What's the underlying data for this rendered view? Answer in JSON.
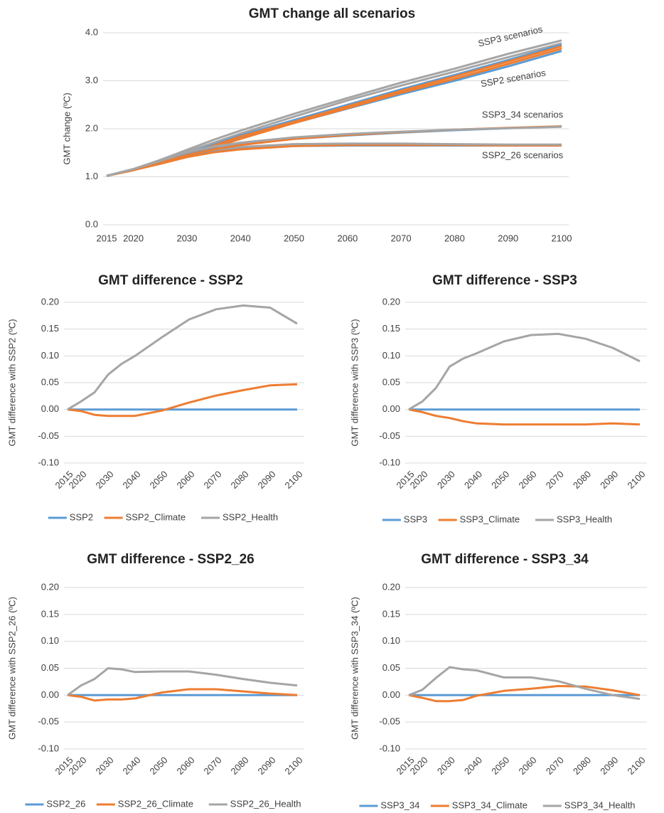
{
  "chart_data": [
    {
      "type": "line",
      "title": "GMT change all scenarios",
      "ylabel": "GMT change (ºC)",
      "x": [
        2015,
        2020,
        2025,
        2030,
        2035,
        2040,
        2050,
        2060,
        2070,
        2080,
        2090,
        2100
      ],
      "xlim": [
        2015,
        2100
      ],
      "xticks": [
        2015,
        2020,
        2030,
        2040,
        2050,
        2060,
        2070,
        2080,
        2090,
        2100
      ],
      "ylim": [
        0,
        4
      ],
      "yticks": [
        {
          "value": 0,
          "label": "0.0"
        },
        {
          "value": 1,
          "label": "1.0"
        },
        {
          "value": 2,
          "label": "2.0"
        },
        {
          "value": 3,
          "label": "3.0"
        },
        {
          "value": 4,
          "label": "4.0"
        }
      ],
      "grid": true,
      "annotations": [
        "SSP3 scenarios",
        "SSP2 scenarios",
        "SSP3_34 scenarios",
        "SSP2_26 scenarios"
      ],
      "series": [
        {
          "color": "#5b9bd5",
          "values": [
            1.02,
            1.15,
            1.3,
            1.45,
            1.62,
            1.8,
            2.12,
            2.42,
            2.72,
            3.0,
            3.3,
            3.62
          ]
        },
        {
          "color": "#ed7d31",
          "values": [
            1.02,
            1.14,
            1.29,
            1.44,
            1.61,
            1.79,
            2.12,
            2.43,
            2.75,
            3.04,
            3.35,
            3.67
          ]
        },
        {
          "color": "#a5a5a5",
          "values": [
            1.02,
            1.15,
            1.32,
            1.52,
            1.71,
            1.9,
            2.25,
            2.59,
            2.9,
            3.19,
            3.49,
            3.78
          ]
        },
        {
          "color": "#5b9bd5",
          "values": [
            1.02,
            1.15,
            1.31,
            1.48,
            1.67,
            1.86,
            2.18,
            2.5,
            2.82,
            3.12,
            3.43,
            3.75
          ]
        },
        {
          "color": "#ed7d31",
          "values": [
            1.02,
            1.14,
            1.3,
            1.46,
            1.65,
            1.84,
            2.15,
            2.47,
            2.79,
            3.09,
            3.4,
            3.72
          ]
        },
        {
          "color": "#a5a5a5",
          "values": [
            1.02,
            1.16,
            1.35,
            1.56,
            1.77,
            1.96,
            2.31,
            2.64,
            2.96,
            3.25,
            3.56,
            3.84
          ]
        },
        {
          "color": "#5b9bd5",
          "values": [
            1.02,
            1.14,
            1.28,
            1.42,
            1.52,
            1.58,
            1.64,
            1.65,
            1.65,
            1.65,
            1.65,
            1.65
          ]
        },
        {
          "color": "#ed7d31",
          "values": [
            1.02,
            1.14,
            1.27,
            1.41,
            1.51,
            1.57,
            1.64,
            1.66,
            1.66,
            1.66,
            1.65,
            1.65
          ]
        },
        {
          "color": "#a5a5a5",
          "values": [
            1.02,
            1.16,
            1.31,
            1.47,
            1.56,
            1.62,
            1.68,
            1.69,
            1.69,
            1.68,
            1.67,
            1.67
          ]
        },
        {
          "color": "#5b9bd5",
          "values": [
            1.02,
            1.15,
            1.3,
            1.46,
            1.58,
            1.67,
            1.79,
            1.86,
            1.92,
            1.97,
            2.01,
            2.05
          ]
        },
        {
          "color": "#ed7d31",
          "values": [
            1.02,
            1.14,
            1.29,
            1.45,
            1.57,
            1.66,
            1.79,
            1.87,
            1.93,
            1.98,
            2.02,
            2.05
          ]
        },
        {
          "color": "#a5a5a5",
          "values": [
            1.02,
            1.16,
            1.33,
            1.51,
            1.63,
            1.71,
            1.82,
            1.89,
            1.94,
            1.98,
            2.01,
            2.04
          ]
        }
      ]
    },
    {
      "type": "line",
      "title": "GMT difference - SSP2",
      "ylabel": "GMT difference with SSP2 (ºC)",
      "x": [
        2015,
        2020,
        2025,
        2030,
        2035,
        2040,
        2050,
        2060,
        2070,
        2080,
        2090,
        2100
      ],
      "xlim": [
        2015,
        2100
      ],
      "xticks": [
        2015,
        2020,
        2030,
        2040,
        2050,
        2060,
        2070,
        2080,
        2090,
        2100
      ],
      "ylim": [
        -0.1,
        0.2
      ],
      "yticks": [
        {
          "value": -0.1,
          "label": "-0.10"
        },
        {
          "value": -0.05,
          "label": "-0.05"
        },
        {
          "value": 0,
          "label": "0.00"
        },
        {
          "value": 0.05,
          "label": "0.05"
        },
        {
          "value": 0.1,
          "label": "0.10"
        },
        {
          "value": 0.15,
          "label": "0.15"
        },
        {
          "value": 0.2,
          "label": "0.20"
        }
      ],
      "grid": true,
      "legend": "bottom",
      "series": [
        {
          "name": "SSP2",
          "color": "#5b9bd5",
          "values": [
            0,
            0,
            0,
            0,
            0,
            0,
            0,
            0,
            0,
            0,
            0,
            0
          ]
        },
        {
          "name": "SSP2_Climate",
          "color": "#ed7d31",
          "values": [
            0,
            -0.003,
            -0.01,
            -0.012,
            -0.012,
            -0.012,
            -0.002,
            0.013,
            0.026,
            0.036,
            0.045,
            0.047
          ]
        },
        {
          "name": "SSP2_Health",
          "color": "#a5a5a5",
          "values": [
            0,
            0.015,
            0.032,
            0.065,
            0.085,
            0.1,
            0.135,
            0.168,
            0.187,
            0.194,
            0.19,
            0.16
          ]
        }
      ]
    },
    {
      "type": "line",
      "title": "GMT difference - SSP3",
      "ylabel": "GMT difference with SSP3 (ºC)",
      "x": [
        2015,
        2020,
        2025,
        2030,
        2035,
        2040,
        2050,
        2060,
        2070,
        2080,
        2090,
        2100
      ],
      "xlim": [
        2015,
        2100
      ],
      "xticks": [
        2015,
        2020,
        2030,
        2040,
        2050,
        2060,
        2070,
        2080,
        2090,
        2100
      ],
      "ylim": [
        -0.1,
        0.2
      ],
      "yticks": [
        {
          "value": -0.1,
          "label": "-0.10"
        },
        {
          "value": -0.05,
          "label": "-0.05"
        },
        {
          "value": 0,
          "label": "0.00"
        },
        {
          "value": 0.05,
          "label": "0.05"
        },
        {
          "value": 0.1,
          "label": "0.10"
        },
        {
          "value": 0.15,
          "label": "0.15"
        },
        {
          "value": 0.2,
          "label": "0.20"
        }
      ],
      "grid": true,
      "legend": "bottom",
      "series": [
        {
          "name": "SSP3",
          "color": "#5b9bd5",
          "values": [
            0,
            0,
            0,
            0,
            0,
            0,
            0,
            0,
            0,
            0,
            0,
            0
          ]
        },
        {
          "name": "SSP3_Climate",
          "color": "#ed7d31",
          "values": [
            0,
            -0.005,
            -0.012,
            -0.016,
            -0.022,
            -0.026,
            -0.028,
            -0.028,
            -0.028,
            -0.028,
            -0.026,
            -0.028
          ]
        },
        {
          "name": "SSP3_Health",
          "color": "#a5a5a5",
          "values": [
            0,
            0.015,
            0.04,
            0.08,
            0.095,
            0.105,
            0.127,
            0.139,
            0.141,
            0.132,
            0.115,
            0.09
          ]
        }
      ]
    },
    {
      "type": "line",
      "title": "GMT difference - SSP2_26",
      "ylabel": "GMT difference with SSP2_26 (ºC)",
      "x": [
        2015,
        2020,
        2025,
        2030,
        2035,
        2040,
        2050,
        2060,
        2070,
        2080,
        2090,
        2100
      ],
      "xlim": [
        2015,
        2100
      ],
      "xticks": [
        2015,
        2020,
        2030,
        2040,
        2050,
        2060,
        2070,
        2080,
        2090,
        2100
      ],
      "ylim": [
        -0.1,
        0.2
      ],
      "yticks": [
        {
          "value": -0.1,
          "label": "-0.10"
        },
        {
          "value": -0.05,
          "label": "-0.05"
        },
        {
          "value": 0,
          "label": "0.00"
        },
        {
          "value": 0.05,
          "label": "0.05"
        },
        {
          "value": 0.1,
          "label": "0.10"
        },
        {
          "value": 0.15,
          "label": "0.15"
        },
        {
          "value": 0.2,
          "label": "0.20"
        }
      ],
      "grid": true,
      "legend": "bottom",
      "series": [
        {
          "name": "SSP2_26",
          "color": "#5b9bd5",
          "values": [
            0,
            0,
            0,
            0,
            0,
            0,
            0,
            0,
            0,
            0,
            0,
            0
          ]
        },
        {
          "name": "SSP2_26_Climate",
          "color": "#ed7d31",
          "values": [
            0,
            -0.003,
            -0.01,
            -0.008,
            -0.008,
            -0.006,
            0.005,
            0.011,
            0.011,
            0.007,
            0.003,
            0
          ]
        },
        {
          "name": "SSP2_26_Health",
          "color": "#a5a5a5",
          "values": [
            0,
            0.018,
            0.03,
            0.05,
            0.048,
            0.043,
            0.044,
            0.044,
            0.038,
            0.03,
            0.023,
            0.018
          ]
        }
      ]
    },
    {
      "type": "line",
      "title": "GMT difference - SSP3_34",
      "ylabel": "GMT difference with SSP3_34 (ºC)",
      "x": [
        2015,
        2020,
        2025,
        2030,
        2035,
        2040,
        2050,
        2060,
        2070,
        2080,
        2090,
        2100
      ],
      "xlim": [
        2015,
        2100
      ],
      "xticks": [
        2015,
        2020,
        2030,
        2040,
        2050,
        2060,
        2070,
        2080,
        2090,
        2100
      ],
      "ylim": [
        -0.1,
        0.2
      ],
      "yticks": [
        {
          "value": -0.1,
          "label": "-0.10"
        },
        {
          "value": -0.05,
          "label": "-0.05"
        },
        {
          "value": 0,
          "label": "0.00"
        },
        {
          "value": 0.05,
          "label": "0.05"
        },
        {
          "value": 0.1,
          "label": "0.10"
        },
        {
          "value": 0.15,
          "label": "0.15"
        },
        {
          "value": 0.2,
          "label": "0.20"
        }
      ],
      "grid": true,
      "legend": "bottom",
      "series": [
        {
          "name": "SSP3_34",
          "color": "#5b9bd5",
          "values": [
            0,
            0,
            0,
            0,
            0,
            0,
            0,
            0,
            0,
            0,
            0,
            0
          ]
        },
        {
          "name": "SSP3_34_Climate",
          "color": "#ed7d31",
          "values": [
            0,
            -0.005,
            -0.011,
            -0.011,
            -0.009,
            -0.001,
            0.008,
            0.012,
            0.017,
            0.016,
            0.009,
            0
          ]
        },
        {
          "name": "SSP3_34_Health",
          "color": "#a5a5a5",
          "values": [
            0,
            0.01,
            0.032,
            0.052,
            0.048,
            0.046,
            0.033,
            0.033,
            0.026,
            0.012,
            0,
            -0.007
          ]
        }
      ]
    }
  ]
}
